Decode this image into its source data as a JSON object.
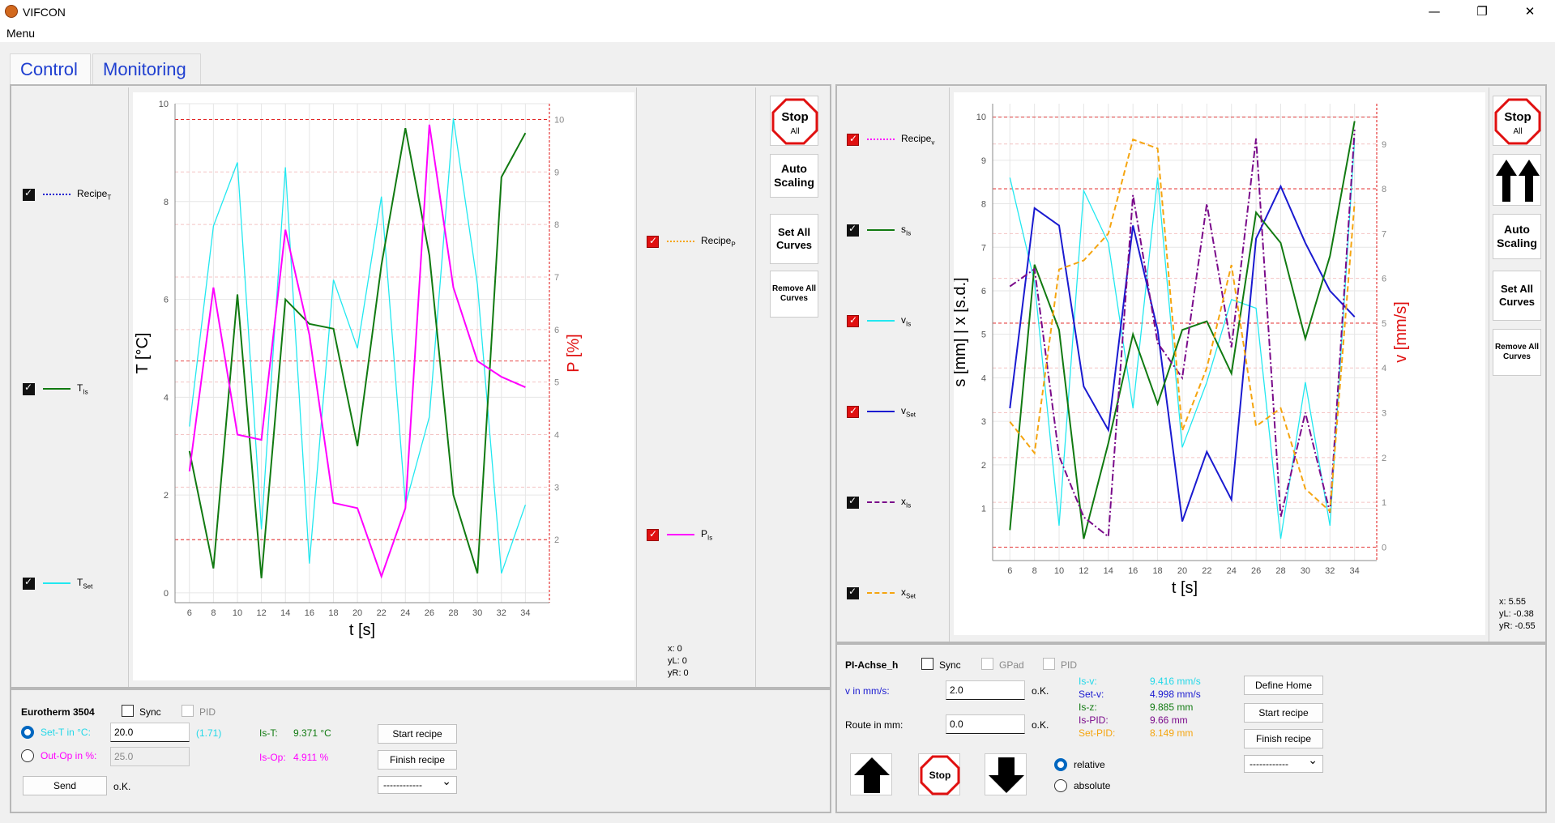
{
  "window": {
    "title": "VIFCON",
    "minimize": "—",
    "maximize": "❐",
    "close": "✕"
  },
  "menu": {
    "label": "Menu"
  },
  "tabs": [
    {
      "label": "Control"
    },
    {
      "label": "Monitoring"
    }
  ],
  "buttons": {
    "stop_all_1": "Stop",
    "stop_all_2": "All",
    "auto_scaling": "Auto Scaling",
    "set_all_curves": "Set All Curves",
    "remove_all_curves": "Remove All Curves",
    "stop": "Stop"
  },
  "left": {
    "legend_left": [
      {
        "main": "Recipe",
        "sub": "T"
      },
      {
        "main": "T",
        "sub": "Is"
      },
      {
        "main": "T",
        "sub": "Set"
      }
    ],
    "legend_right": [
      {
        "main": "Recipe",
        "sub": "P"
      },
      {
        "main": "P",
        "sub": "Is"
      }
    ],
    "readout": {
      "x": "x: 0",
      "yL": "yL: 0",
      "yR": "yR: 0"
    },
    "device": {
      "name": "Eurotherm 3504",
      "sync": "Sync",
      "pid": "PID",
      "set_t_label": "Set-T in °C:",
      "set_t_value": "20.0",
      "set_t_hint": "(1.71)",
      "out_op_label": "Out-Op in %:",
      "out_op_value": "25.0",
      "send": "Send",
      "ok": "o.K.",
      "is_t_label": "Is-T:",
      "is_t_value": "9.371 °C",
      "is_op_label": "Is-Op:",
      "is_op_value": "4.911 %",
      "start_recipe": "Start recipe",
      "finish_recipe": "Finish recipe",
      "recipe_select": "------------"
    }
  },
  "right": {
    "legend": [
      {
        "main": "Recipe",
        "sub": "v"
      },
      {
        "main": "s",
        "sub": "Is"
      },
      {
        "main": "v",
        "sub": "Is"
      },
      {
        "main": "v",
        "sub": "Set"
      },
      {
        "main": "x",
        "sub": "Is"
      },
      {
        "main": "x",
        "sub": "Set"
      }
    ],
    "readout": {
      "x": "x: 5.55",
      "yL": "yL: -0.38",
      "yR": "yR: -0.55"
    },
    "device": {
      "name": "PI-Achse_h",
      "sync": "Sync",
      "gpad": "GPad",
      "pid": "PID",
      "v_label": "v in mm/s:",
      "v_value": "2.0",
      "route_label": "Route in mm:",
      "route_value": "0.0",
      "ok1": "o.K.",
      "ok2": "o.K.",
      "is_v_label": "Is-v:",
      "is_v_value": "9.416 mm/s",
      "set_v_label": "Set-v:",
      "set_v_value": "4.998 mm/s",
      "is_z_label": "Is-z:",
      "is_z_value": "9.885 mm",
      "is_pid_label": "Is-PID:",
      "is_pid_value": "9.66 mm",
      "set_pid_label": "Set-PID:",
      "set_pid_value": "8.149 mm",
      "relative": "relative",
      "absolute": "absolute",
      "define_home": "Define Home",
      "start_recipe": "Start recipe",
      "finish_recipe": "Finish recipe",
      "recipe_select": "------------"
    }
  },
  "colors": {
    "cyan": "#22e8f0",
    "green": "#117a11",
    "magenta": "#ff00ff",
    "blue": "#1a1ad0",
    "purple": "#7a0a8a",
    "orange": "#f5a510",
    "red": "#e01010"
  },
  "chart_data": [
    {
      "type": "line",
      "xlabel": "t [s]",
      "ylabel": "T [°C]",
      "ylabel_right": "P [%]",
      "xlim": [
        4.8,
        36
      ],
      "ylim": [
        -0.2,
        10
      ],
      "ylim_right": [
        0.8,
        10.3
      ],
      "xticks": [
        6,
        8,
        10,
        12,
        14,
        16,
        18,
        20,
        22,
        24,
        26,
        28,
        30,
        32,
        34
      ],
      "yticks": [
        0,
        2,
        4,
        6,
        8,
        10
      ],
      "yticks_right": [
        2,
        3,
        4,
        5,
        6,
        7,
        8,
        9,
        10
      ],
      "series": [
        {
          "name": "T_Set",
          "axis": "left",
          "color": "#22e8f0",
          "x": [
            6,
            8,
            10,
            12,
            14,
            16,
            18,
            20,
            22,
            24,
            26,
            28,
            30,
            32,
            34
          ],
          "y": [
            3.4,
            7.5,
            8.8,
            1.3,
            8.7,
            0.6,
            6.4,
            5.0,
            8.1,
            1.8,
            3.6,
            9.7,
            6.3,
            0.4,
            1.8
          ]
        },
        {
          "name": "T_Is",
          "axis": "left",
          "color": "#117a11",
          "x": [
            6,
            8,
            10,
            12,
            14,
            16,
            18,
            20,
            22,
            24,
            26,
            28,
            30,
            32,
            34
          ],
          "y": [
            2.9,
            0.5,
            6.1,
            0.3,
            6.0,
            5.5,
            5.4,
            3.0,
            6.7,
            9.5,
            6.9,
            2.0,
            0.4,
            8.5,
            9.4
          ]
        },
        {
          "name": "P_Is",
          "axis": "right",
          "color": "#ff00ff",
          "x": [
            6,
            8,
            10,
            12,
            14,
            16,
            18,
            20,
            22,
            24,
            26,
            28,
            30,
            32,
            34
          ],
          "y": [
            3.3,
            6.8,
            4.0,
            3.9,
            7.9,
            5.9,
            2.7,
            2.6,
            1.3,
            2.6,
            9.9,
            6.8,
            5.4,
            5.1,
            4.9
          ]
        }
      ],
      "hlines_right": [
        10,
        5.4,
        2.0
      ]
    },
    {
      "type": "line",
      "xlabel": "t [s]",
      "ylabel": "s [mm] | x [s.d.]",
      "ylabel_right": "v [mm/s]",
      "xlim": [
        4.6,
        35.8
      ],
      "ylim": [
        -0.2,
        10.3
      ],
      "ylim_right": [
        -0.3,
        9.9
      ],
      "xticks": [
        6,
        8,
        10,
        12,
        14,
        16,
        18,
        20,
        22,
        24,
        26,
        28,
        30,
        32,
        34
      ],
      "yticks": [
        1,
        2,
        3,
        4,
        5,
        6,
        7,
        8,
        9,
        10
      ],
      "yticks_right": [
        0,
        1,
        2,
        3,
        4,
        5,
        6,
        7,
        8,
        9
      ],
      "series": [
        {
          "name": "v_Is",
          "axis": "left",
          "color": "#22e8f0",
          "x": [
            6,
            8,
            10,
            12,
            14,
            16,
            18,
            20,
            22,
            24,
            26,
            28,
            30,
            32,
            34
          ],
          "y": [
            8.6,
            6.2,
            0.6,
            8.3,
            7.1,
            3.3,
            8.6,
            2.4,
            3.9,
            5.8,
            5.6,
            0.3,
            3.9,
            0.6,
            9.5
          ]
        },
        {
          "name": "v_Set",
          "axis": "left",
          "color": "#1a1ad0",
          "x": [
            6,
            8,
            10,
            12,
            14,
            16,
            18,
            20,
            22,
            24,
            26,
            28,
            30,
            32,
            34
          ],
          "y": [
            3.3,
            7.9,
            7.5,
            3.8,
            2.8,
            7.5,
            5.1,
            0.7,
            2.3,
            1.2,
            7.2,
            8.4,
            7.1,
            6.0,
            5.4
          ]
        },
        {
          "name": "s_Is",
          "axis": "left",
          "color": "#117a11",
          "x": [
            6,
            8,
            10,
            12,
            14,
            16,
            18,
            20,
            22,
            24,
            26,
            28,
            30,
            32,
            34
          ],
          "y": [
            0.5,
            6.6,
            5.1,
            0.3,
            2.5,
            5.0,
            3.4,
            5.1,
            5.3,
            4.1,
            7.8,
            7.1,
            4.9,
            6.8,
            9.9
          ]
        },
        {
          "name": "x_Is",
          "axis": "left",
          "color": "#7a0a8a",
          "dash": "dashdot",
          "x": [
            6,
            8,
            10,
            12,
            14,
            16,
            18,
            20,
            22,
            24,
            26,
            28,
            30,
            32,
            34
          ],
          "y": [
            6.1,
            6.5,
            2.2,
            0.8,
            0.35,
            8.2,
            4.8,
            4.0,
            8.0,
            4.7,
            9.5,
            0.8,
            3.2,
            0.9,
            9.7
          ]
        },
        {
          "name": "x_Set",
          "axis": "right",
          "color": "#f5a510",
          "dash": "dash",
          "x": [
            6,
            8,
            10,
            12,
            14,
            16,
            18,
            20,
            22,
            24,
            26,
            28,
            30,
            32,
            34
          ],
          "y": [
            2.8,
            2.1,
            6.2,
            6.4,
            7.0,
            9.1,
            8.9,
            2.6,
            4.0,
            6.3,
            2.7,
            3.1,
            1.3,
            0.8,
            7.7
          ]
        }
      ],
      "hlines_right": [
        0,
        5,
        8,
        9.6
      ]
    }
  ]
}
